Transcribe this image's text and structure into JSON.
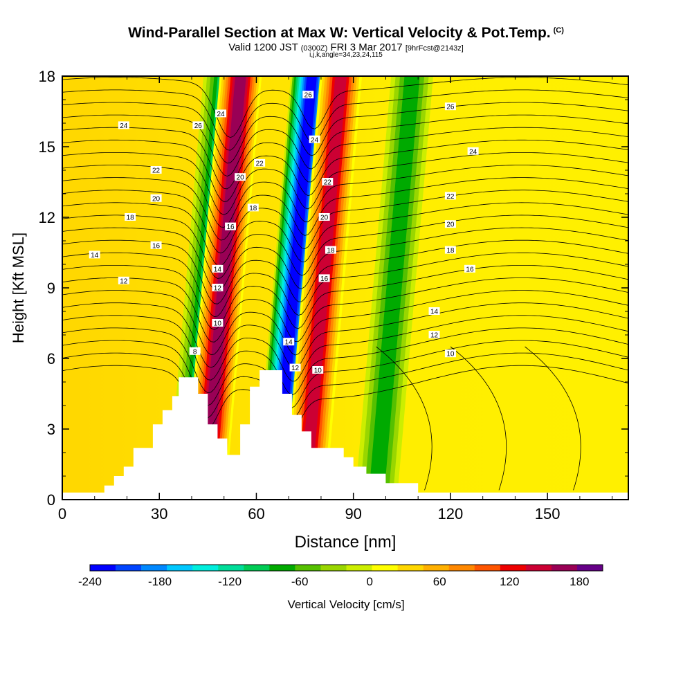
{
  "chart_data": {
    "type": "heatmap",
    "title": "Wind-Parallel Section at Max W: Vertical Velocity & Pot.Temp.",
    "title_mark": "(C)",
    "subtitle": {
      "valid": "Valid 1200 JST",
      "utc": "(0300Z)",
      "date": "FRI 3 Mar 2017",
      "run": "[9hrFcst@2143z]"
    },
    "params": "i,j,k,angle=34,23,24,115",
    "xlabel": "Distance [nm]",
    "ylabel": "Height [Kft MSL]",
    "xlim": [
      0,
      175
    ],
    "ylim": [
      0,
      18
    ],
    "xticks": [
      "0",
      "30",
      "60",
      "90",
      "120",
      "150"
    ],
    "yticks": [
      "0",
      "3",
      "6",
      "9",
      "12",
      "15",
      "18"
    ],
    "colorbar": {
      "label": "Vertical Velocity [cm/s]",
      "ticks": [
        "-240",
        "-180",
        "-120",
        "-60",
        "0",
        "60",
        "120",
        "180"
      ],
      "range": [
        -240,
        200
      ],
      "colors": [
        "#0000ff",
        "#0044ff",
        "#0088ff",
        "#00c8ff",
        "#00eedd",
        "#00dd99",
        "#00cc55",
        "#00aa00",
        "#55c000",
        "#99d600",
        "#ccee00",
        "#ffff00",
        "#ffd700",
        "#ffb000",
        "#ff8800",
        "#ff5500",
        "#ee0000",
        "#cc0033",
        "#990055",
        "#660088"
      ]
    },
    "vertical_velocity_bands_x_at_surface": [
      {
        "x": 39,
        "w": -100
      },
      {
        "x": 44,
        "w": 170
      },
      {
        "x": 66,
        "w": -230
      },
      {
        "x": 75,
        "w": 150
      },
      {
        "x": 97,
        "w": -80
      }
    ],
    "theta_contour_labels": [
      {
        "x": 19,
        "y": 15.9,
        "text": "24"
      },
      {
        "x": 29,
        "y": 14.0,
        "text": "22"
      },
      {
        "x": 29,
        "y": 12.8,
        "text": "20"
      },
      {
        "x": 21,
        "y": 12.0,
        "text": "18"
      },
      {
        "x": 29,
        "y": 10.8,
        "text": "16"
      },
      {
        "x": 10,
        "y": 10.4,
        "text": "14"
      },
      {
        "x": 19,
        "y": 9.3,
        "text": "12"
      },
      {
        "x": 42,
        "y": 15.9,
        "text": "26"
      },
      {
        "x": 49,
        "y": 16.4,
        "text": "24"
      },
      {
        "x": 55,
        "y": 13.7,
        "text": "20"
      },
      {
        "x": 61,
        "y": 14.3,
        "text": "22"
      },
      {
        "x": 59,
        "y": 12.4,
        "text": "18"
      },
      {
        "x": 52,
        "y": 11.6,
        "text": "16"
      },
      {
        "x": 48,
        "y": 9.8,
        "text": "14"
      },
      {
        "x": 48,
        "y": 9.0,
        "text": "12"
      },
      {
        "x": 48,
        "y": 7.5,
        "text": "10"
      },
      {
        "x": 41,
        "y": 6.3,
        "text": "8"
      },
      {
        "x": 76,
        "y": 17.2,
        "text": "26"
      },
      {
        "x": 78,
        "y": 15.3,
        "text": "24"
      },
      {
        "x": 82,
        "y": 13.5,
        "text": "22"
      },
      {
        "x": 81,
        "y": 12.0,
        "text": "20"
      },
      {
        "x": 83,
        "y": 10.6,
        "text": "18"
      },
      {
        "x": 81,
        "y": 9.4,
        "text": "16"
      },
      {
        "x": 70,
        "y": 6.7,
        "text": "14"
      },
      {
        "x": 72,
        "y": 5.6,
        "text": "12"
      },
      {
        "x": 79,
        "y": 5.5,
        "text": "10"
      },
      {
        "x": 120,
        "y": 16.7,
        "text": "26"
      },
      {
        "x": 127,
        "y": 14.8,
        "text": "24"
      },
      {
        "x": 120,
        "y": 12.9,
        "text": "22"
      },
      {
        "x": 120,
        "y": 11.7,
        "text": "20"
      },
      {
        "x": 120,
        "y": 10.6,
        "text": "18"
      },
      {
        "x": 126,
        "y": 9.8,
        "text": "16"
      },
      {
        "x": 115,
        "y": 8.0,
        "text": "14"
      },
      {
        "x": 115,
        "y": 7.0,
        "text": "12"
      },
      {
        "x": 120,
        "y": 6.2,
        "text": "10"
      }
    ],
    "terrain_profile": [
      [
        0,
        0.3
      ],
      [
        13,
        0.3
      ],
      [
        13,
        0.6
      ],
      [
        16,
        0.6
      ],
      [
        16,
        1.0
      ],
      [
        19,
        1.0
      ],
      [
        19,
        1.4
      ],
      [
        22,
        1.4
      ],
      [
        22,
        2.2
      ],
      [
        28,
        2.2
      ],
      [
        28,
        3.2
      ],
      [
        31,
        3.2
      ],
      [
        31,
        3.8
      ],
      [
        34,
        3.8
      ],
      [
        34,
        4.4
      ],
      [
        36,
        4.4
      ],
      [
        36,
        5.2
      ],
      [
        42,
        5.2
      ],
      [
        42,
        4.5
      ],
      [
        45,
        4.5
      ],
      [
        45,
        3.2
      ],
      [
        48,
        3.2
      ],
      [
        48,
        2.6
      ],
      [
        51,
        2.6
      ],
      [
        51,
        1.9
      ],
      [
        55,
        1.9
      ],
      [
        55,
        3.2
      ],
      [
        58,
        3.2
      ],
      [
        58,
        4.8
      ],
      [
        61,
        4.8
      ],
      [
        61,
        5.5
      ],
      [
        68,
        5.5
      ],
      [
        68,
        4.5
      ],
      [
        71,
        4.5
      ],
      [
        71,
        3.6
      ],
      [
        74,
        3.6
      ],
      [
        74,
        2.9
      ],
      [
        77,
        2.9
      ],
      [
        77,
        2.2
      ],
      [
        87,
        2.2
      ],
      [
        87,
        1.8
      ],
      [
        90,
        1.8
      ],
      [
        90,
        1.4
      ],
      [
        94,
        1.4
      ],
      [
        94,
        1.1
      ],
      [
        100,
        1.1
      ],
      [
        100,
        0.7
      ],
      [
        110,
        0.7
      ],
      [
        110,
        0.3
      ],
      [
        175,
        0.3
      ]
    ]
  }
}
